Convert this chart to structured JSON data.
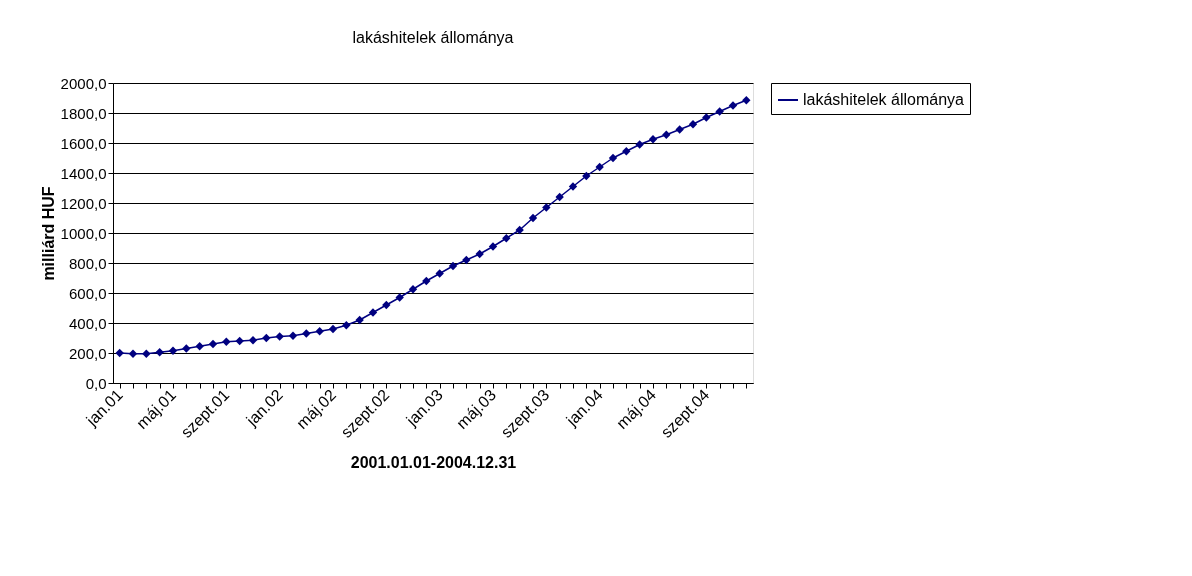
{
  "chart_data": {
    "type": "line",
    "title": "lakáshitelek állománya",
    "xlabel": "2001.01.01-2004.12.31",
    "ylabel": "milliárd HUF",
    "categories": [
      "jan.01",
      null,
      null,
      null,
      "máj.01",
      null,
      null,
      null,
      "szept.01",
      null,
      null,
      null,
      "jan.02",
      null,
      null,
      null,
      "máj.02",
      null,
      null,
      null,
      "szept.02",
      null,
      null,
      null,
      "jan.03",
      null,
      null,
      null,
      "máj.03",
      null,
      null,
      null,
      "szept.03",
      null,
      null,
      null,
      "jan.04",
      null,
      null,
      null,
      "máj.04",
      null,
      null,
      null,
      "szept.04",
      null,
      null,
      null
    ],
    "series": [
      {
        "name": "lakáshitelek állománya",
        "color": "#000080",
        "values": [
          200,
          195,
          195,
          205,
          215,
          230,
          245,
          260,
          275,
          280,
          285,
          300,
          310,
          315,
          330,
          345,
          360,
          385,
          420,
          470,
          520,
          570,
          625,
          680,
          730,
          780,
          820,
          860,
          910,
          965,
          1020,
          1100,
          1170,
          1240,
          1310,
          1380,
          1440,
          1500,
          1545,
          1590,
          1625,
          1655,
          1690,
          1725,
          1770,
          1810,
          1850,
          1885
        ]
      }
    ],
    "ylim": [
      0,
      2000
    ],
    "yticks": [
      {
        "value": 0,
        "label": "0,0"
      },
      {
        "value": 200,
        "label": "200,0"
      },
      {
        "value": 400,
        "label": "400,0"
      },
      {
        "value": 600,
        "label": "600,0"
      },
      {
        "value": 800,
        "label": "800,0"
      },
      {
        "value": 1000,
        "label": "1000,0"
      },
      {
        "value": 1200,
        "label": "1200,0"
      },
      {
        "value": 1400,
        "label": "1400,0"
      },
      {
        "value": 1600,
        "label": "1600,0"
      },
      {
        "value": 1800,
        "label": "1800,0"
      },
      {
        "value": 2000,
        "label": "2000,0"
      }
    ],
    "grid": "y",
    "legend": "right",
    "marker": "diamond",
    "line_style": "solid"
  }
}
